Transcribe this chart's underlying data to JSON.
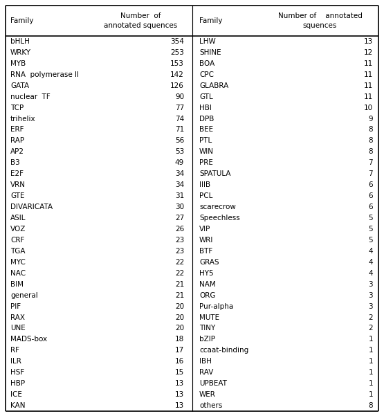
{
  "left_families": [
    "bHLH",
    "WRKY",
    "MYB",
    "RNA  polymerase II",
    "GATA",
    "nuclear  TF",
    "TCP",
    "trihelix",
    "ERF",
    "RAP",
    "AP2",
    "B3",
    "E2F",
    "VRN",
    "GTE",
    "DIVARICATA",
    "ASIL",
    "VOZ",
    "CRF",
    "TGA",
    "MYC",
    "NAC",
    "BIM",
    "general",
    "PIF",
    "RAX",
    "UNE",
    "MADS-box",
    "RF",
    "ILR",
    "HSF",
    "HBP",
    "ICE",
    "KAN"
  ],
  "left_values": [
    354,
    253,
    153,
    142,
    126,
    90,
    77,
    74,
    71,
    56,
    53,
    49,
    34,
    34,
    31,
    30,
    27,
    26,
    23,
    23,
    22,
    22,
    21,
    21,
    20,
    20,
    20,
    18,
    17,
    16,
    15,
    13,
    13,
    13
  ],
  "right_families": [
    "LHW",
    "SHINE",
    "BOA",
    "CPC",
    "GLABRA",
    "GTL",
    "HBI",
    "DPB",
    "BEE",
    "PTL",
    "WIN",
    "PRE",
    "SPATULA",
    "IIIB",
    "PCL",
    "scarecrow",
    "Speechless",
    "VIP",
    "WRI",
    "BTF",
    "GRAS",
    "HY5",
    "NAM",
    "ORG",
    "Pur-alpha",
    "MUTE",
    "TINY",
    "bZIP",
    "ccaat-binding",
    "IBH",
    "RAV",
    "UPBEAT",
    "WER",
    "others"
  ],
  "right_values": [
    13,
    12,
    11,
    11,
    11,
    11,
    10,
    9,
    8,
    8,
    8,
    7,
    7,
    6,
    6,
    6,
    5,
    5,
    5,
    4,
    4,
    4,
    3,
    3,
    3,
    2,
    2,
    1,
    1,
    1,
    1,
    1,
    1,
    8
  ],
  "background_color": "#ffffff",
  "text_color": "#000000",
  "font_size": 7.5
}
